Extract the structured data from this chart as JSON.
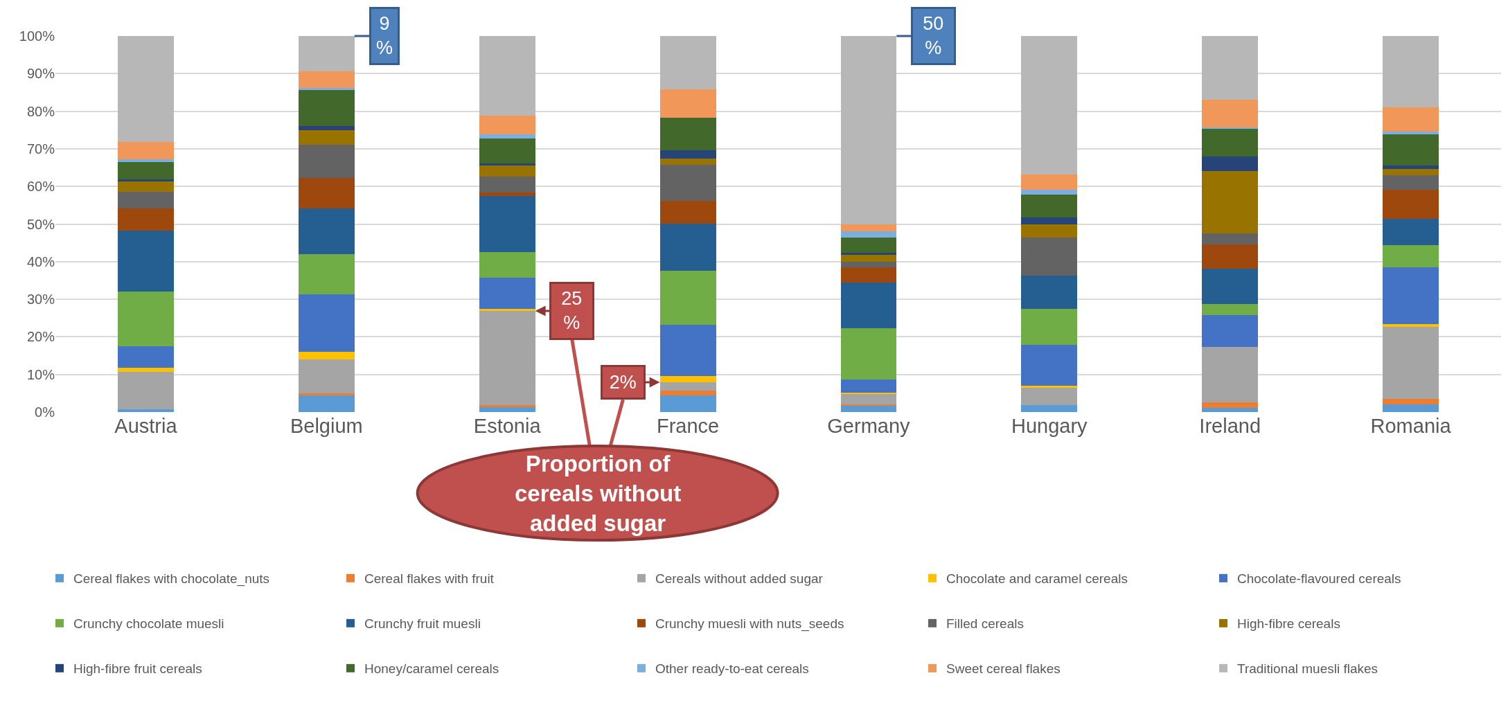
{
  "chart_data": {
    "type": "bar",
    "stacked": true,
    "categories": [
      "Austria",
      "Belgium",
      "Estonia",
      "France",
      "Germany",
      "Hungary",
      "Ireland",
      "Romania"
    ],
    "series": [
      {
        "name": "Cereal flakes with chocolate_nuts",
        "color": "#5b9bd5",
        "values": [
          0.7,
          4.4,
          1.2,
          4.5,
          1.8,
          1.8,
          1.1,
          2.0
        ]
      },
      {
        "name": "Cereal flakes with fruit",
        "color": "#ed7d31",
        "values": [
          null,
          0.5,
          0.7,
          1.3,
          0.3,
          null,
          1.5,
          1.5
        ]
      },
      {
        "name": "Cereals without added sugar",
        "color": "#a5a5a5",
        "values": [
          10.0,
          9.1,
          25,
          2.1,
          2.6,
          4.7,
          14.7,
          19.1
        ]
      },
      {
        "name": "Chocolate and caramel cereals",
        "color": "#ffc000",
        "values": [
          1.0,
          2.1,
          0.5,
          1.6,
          0.4,
          0.5,
          null,
          0.8
        ]
      },
      {
        "name": "Chocolate-flavoured cereals",
        "color": "#4472c4",
        "values": [
          5.8,
          15.2,
          8.3,
          13.7,
          3.5,
          10.9,
          8.4,
          15.0
        ]
      },
      {
        "name": "Crunchy chocolate muesli",
        "color": "#70ad47",
        "values": [
          14.5,
          10.7,
          6.8,
          14.3,
          13.7,
          9.6,
          3.0,
          5.9
        ]
      },
      {
        "name": "Crunchy fruit muesli",
        "color": "#255e91",
        "values": [
          16.2,
          12.2,
          14.9,
          12.6,
          12.2,
          8.8,
          9.5,
          7.0
        ]
      },
      {
        "name": "Crunchy muesli with nuts_seeds",
        "color": "#9e480e",
        "values": [
          5.9,
          8.0,
          0.9,
          6.0,
          3.9,
          null,
          6.4,
          7.8
        ]
      },
      {
        "name": "Filled cereals",
        "color": "#636363",
        "values": [
          4.5,
          8.9,
          4.3,
          9.6,
          1.6,
          10.1,
          3.0,
          3.8
        ]
      },
      {
        "name": "High-fibre cereals",
        "color": "#997300",
        "values": [
          2.9,
          3.8,
          3.0,
          1.7,
          1.8,
          3.5,
          16.5,
          1.8
        ]
      },
      {
        "name": "High-fibre fruit cereals",
        "color": "#264478",
        "values": [
          0.3,
          1.1,
          0.5,
          2.3,
          0.5,
          1.8,
          3.9,
          0.9
        ]
      },
      {
        "name": "Honey/caramel cereals",
        "color": "#43682b",
        "values": [
          4.6,
          9.7,
          6.6,
          8.6,
          4.2,
          6.2,
          7.5,
          8.3
        ]
      },
      {
        "name": "Other ready-to-eat cereals",
        "color": "#7cafdd",
        "values": [
          0.9,
          0.5,
          1.1,
          null,
          1.5,
          1.2,
          0.2,
          0.6
        ]
      },
      {
        "name": "Sweet cereal flakes",
        "color": "#f1975a",
        "values": [
          4.5,
          4.4,
          5.0,
          7.6,
          2.0,
          4.0,
          7.3,
          6.6
        ]
      },
      {
        "name": "Traditional muesli flakes",
        "color": "#b7b7b7",
        "values": [
          28.2,
          9.4,
          21.2,
          14.1,
          50,
          36.9,
          17.0,
          18.9
        ]
      }
    ],
    "ylim": [
      0,
      100
    ],
    "yticks": [
      {
        "value": 0,
        "label": "0%"
      },
      {
        "value": 10,
        "label": "10%"
      },
      {
        "value": 20,
        "label": "20%"
      },
      {
        "value": 30,
        "label": "30%"
      },
      {
        "value": 40,
        "label": "40%"
      },
      {
        "value": 50,
        "label": "50%"
      },
      {
        "value": 60,
        "label": "60%"
      },
      {
        "value": 70,
        "label": "70%"
      },
      {
        "value": 80,
        "label": "80%"
      },
      {
        "value": 90,
        "label": "90%"
      },
      {
        "value": 100,
        "label": "100%"
      }
    ],
    "grid": "y",
    "legend": "bottom",
    "annotations": [
      {
        "text": "9\n%",
        "x": "Belgium",
        "y": 100
      },
      {
        "text": "25\n%",
        "x": "Estonia",
        "y": 26.9
      },
      {
        "text": "2%",
        "x": "France",
        "y": 7.9
      },
      {
        "text": "50\n%",
        "x": "Germany",
        "y": 100
      },
      "Proportion of cereals without added sugar"
    ]
  }
}
